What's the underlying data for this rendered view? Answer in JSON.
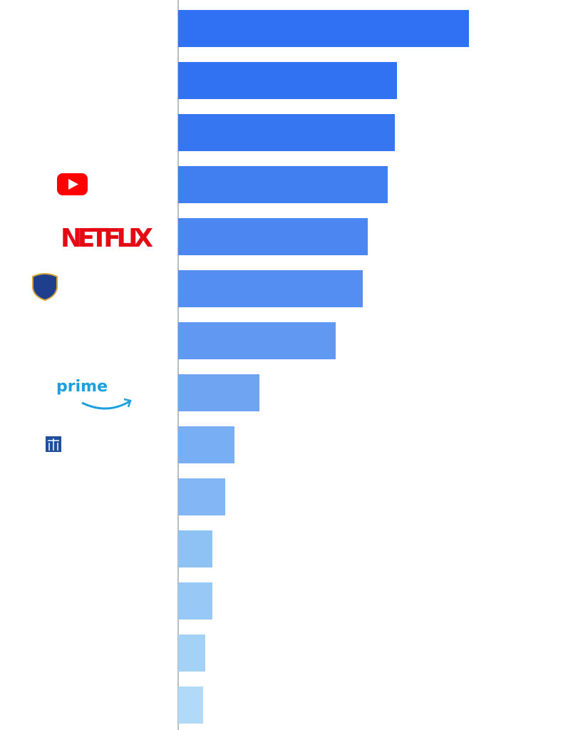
{
  "chart_data": {
    "type": "barh",
    "categories": [
      null,
      null,
      null,
      null,
      "NETFLIX",
      null,
      null,
      "prime",
      null,
      null,
      null,
      null,
      null,
      null
    ],
    "values": [
      408,
      307,
      304,
      294,
      266,
      259,
      221,
      114,
      79,
      66,
      48,
      48,
      38,
      35
    ],
    "colors": [
      "#3070f2",
      "#3172f3",
      "#3676f0",
      "#417ef0",
      "#4b86f1",
      "#558ef2",
      "#6098f2",
      "#6ea4f2",
      "#78aef3",
      "#82b6f4",
      "#8ec2f5",
      "#98c8f6",
      "#a4d2f7",
      "#b0daf8"
    ],
    "xlim": [
      0,
      554
    ]
  }
}
